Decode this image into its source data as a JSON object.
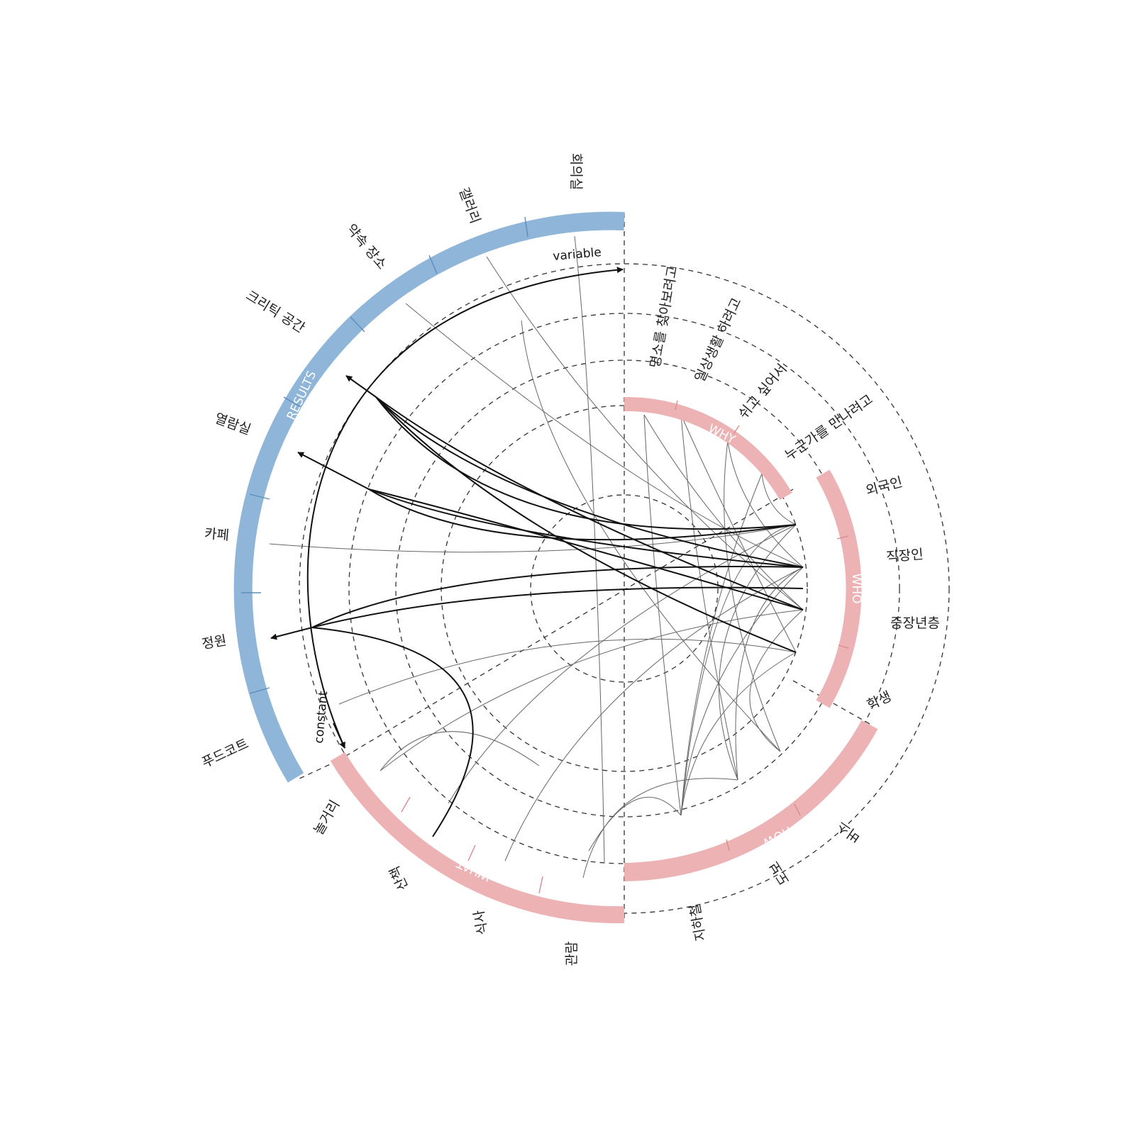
{
  "colors": {
    "results": "#8fb6d8",
    "categories": "#ecb2b4",
    "strong_link": "#111111",
    "weak_link": "#666666",
    "guide": "#333333"
  },
  "rings": {
    "results": {
      "name": "RESULTS",
      "items": [
        "회의실",
        "갤러리",
        "약속 장소",
        "크리틱 공간",
        "열람실",
        "카페",
        "정원",
        "푸드코트"
      ]
    },
    "why": {
      "name": "WHY",
      "items": [
        "명소를 찾아보려고",
        "일상생활 하려고",
        "쉬고 싶어서",
        "누군가를 만나려고"
      ]
    },
    "who": {
      "name": "WHO",
      "items": [
        "외국인",
        "직장인",
        "중장년층",
        "학생"
      ]
    },
    "how": {
      "name": "HOW",
      "items": [
        "버스",
        "도보",
        "지하철"
      ]
    },
    "what": {
      "name": "WHAT",
      "items": [
        "놀거리",
        "산책",
        "식사",
        "관람"
      ]
    }
  },
  "annotations": {
    "variable": "variable",
    "constant": "constant"
  }
}
